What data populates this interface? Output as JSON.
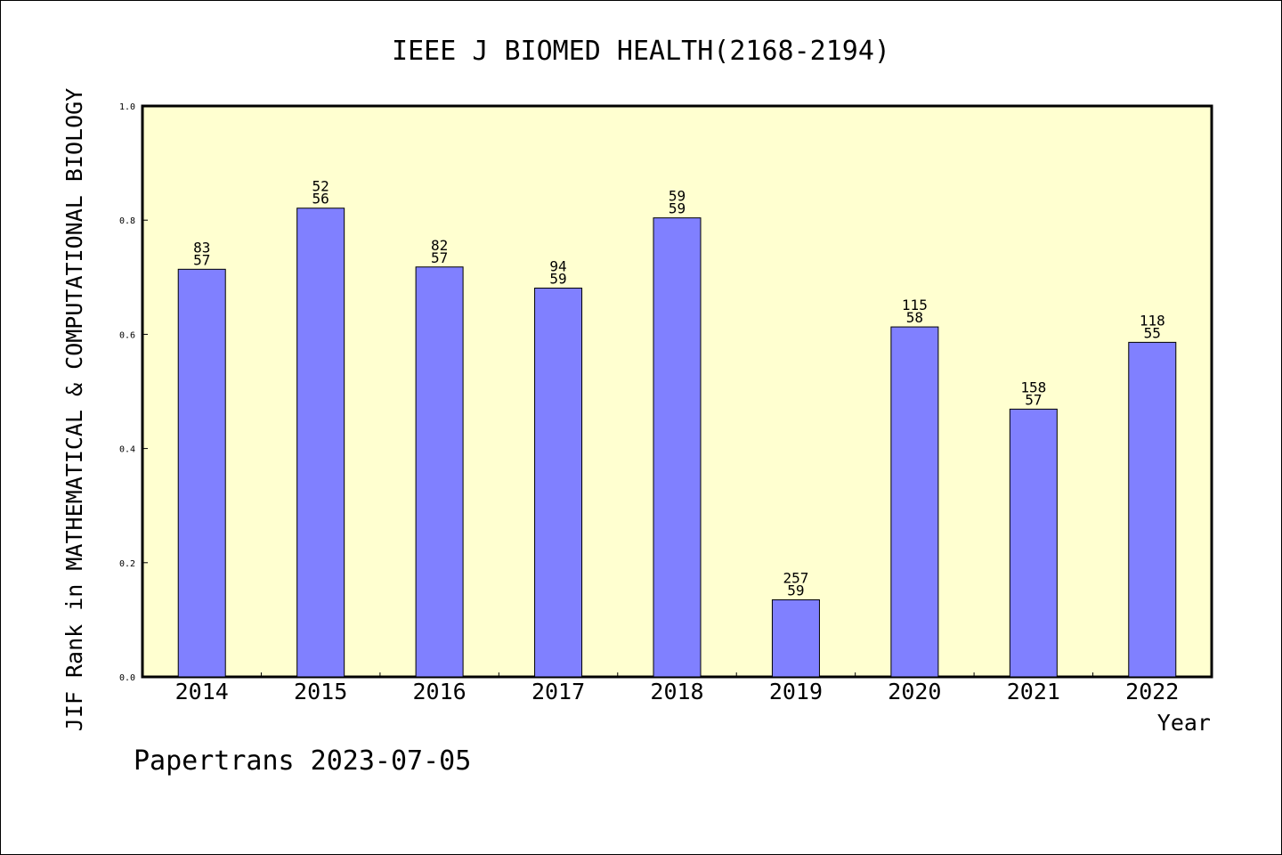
{
  "chart_data": {
    "type": "bar",
    "title": "IEEE J BIOMED HEALTH(2168-2194)",
    "xlabel": "Year",
    "ylabel": "JIF Rank in MATHEMATICAL & COMPUTATIONAL BIOLOGY",
    "ylim": [
      0,
      1.0
    ],
    "yticks": [
      "0.0",
      "0.2",
      "0.4",
      "0.6",
      "0.8",
      "1.0"
    ],
    "ytick_values": [
      0,
      0.2,
      0.4,
      0.6,
      0.8,
      1.0
    ],
    "categories": [
      "2014",
      "2015",
      "2016",
      "2017",
      "2018",
      "2019",
      "2020",
      "2021",
      "2022"
    ],
    "values": [
      0.714,
      0.821,
      0.718,
      0.681,
      0.804,
      0.135,
      0.613,
      0.469,
      0.586
    ],
    "label_top": [
      "83",
      "52",
      "82",
      "94",
      "59",
      "257",
      "115",
      "158",
      "118"
    ],
    "label_bottom": [
      "57",
      "56",
      "57",
      "59",
      "59",
      "59",
      "58",
      "57",
      "55"
    ],
    "colors": {
      "plot_bg": "#ffffd0",
      "bar": "#8080ff",
      "bar_edge": "#000000"
    },
    "grid": false,
    "legend": "none"
  },
  "footer": "Papertrans 2023-07-05"
}
